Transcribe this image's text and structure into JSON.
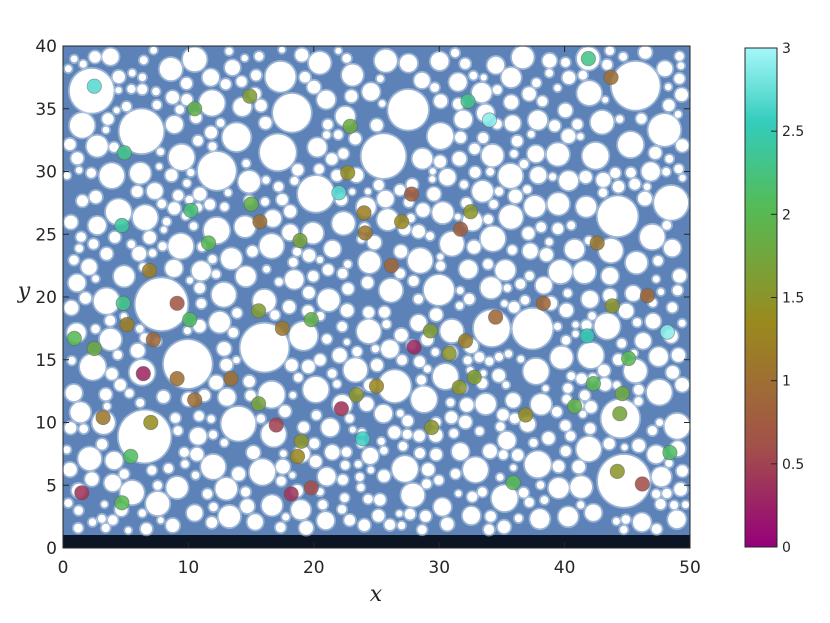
{
  "chart_data": {
    "type": "scatter",
    "title": "",
    "xlabel": "x",
    "ylabel": "y",
    "xlim": [
      0,
      50
    ],
    "ylim": [
      0,
      40
    ],
    "x_ticks": [
      0,
      10,
      20,
      30,
      40,
      50
    ],
    "y_ticks": [
      0,
      5,
      10,
      15,
      20,
      25,
      30,
      35,
      40
    ],
    "background": "packed white discs (grains) on a shaded blue field, dark band along y = 0 to 1",
    "colorbar": {
      "range": [
        0,
        3
      ],
      "ticks": [
        "0",
        "0.5",
        "1",
        "1.5",
        "2",
        "2.5",
        "3"
      ],
      "colors": [
        "#96007a",
        "#a3504a",
        "#9a8a1e",
        "#55bb55",
        "#33ccbb",
        "#a5f7fa"
      ]
    },
    "point_values": [
      {
        "x": 2.5,
        "y": 36.8,
        "c": 2.7
      },
      {
        "x": 10.5,
        "y": 35.0,
        "c": 1.9
      },
      {
        "x": 14.9,
        "y": 36.0,
        "c": 1.6
      },
      {
        "x": 32.3,
        "y": 35.6,
        "c": 2.3
      },
      {
        "x": 34.0,
        "y": 34.1,
        "c": 2.9
      },
      {
        "x": 41.9,
        "y": 39.0,
        "c": 2.3
      },
      {
        "x": 43.7,
        "y": 37.5,
        "c": 1.0
      },
      {
        "x": 4.9,
        "y": 31.5,
        "c": 2.3
      },
      {
        "x": 22.9,
        "y": 33.6,
        "c": 1.8
      },
      {
        "x": 22.0,
        "y": 28.3,
        "c": 2.7
      },
      {
        "x": 22.7,
        "y": 29.9,
        "c": 1.4
      },
      {
        "x": 27.8,
        "y": 28.2,
        "c": 0.8
      },
      {
        "x": 10.2,
        "y": 26.9,
        "c": 2.2
      },
      {
        "x": 15.0,
        "y": 27.4,
        "c": 1.9
      },
      {
        "x": 15.7,
        "y": 26.0,
        "c": 1.0
      },
      {
        "x": 4.7,
        "y": 25.7,
        "c": 2.4
      },
      {
        "x": 11.6,
        "y": 24.3,
        "c": 2.0
      },
      {
        "x": 18.9,
        "y": 24.5,
        "c": 1.7
      },
      {
        "x": 24.0,
        "y": 26.7,
        "c": 1.2
      },
      {
        "x": 24.1,
        "y": 25.1,
        "c": 1.1
      },
      {
        "x": 27.0,
        "y": 26.0,
        "c": 1.3
      },
      {
        "x": 32.5,
        "y": 26.8,
        "c": 1.5
      },
      {
        "x": 31.7,
        "y": 25.4,
        "c": 0.8
      },
      {
        "x": 42.6,
        "y": 24.3,
        "c": 1.1
      },
      {
        "x": 6.9,
        "y": 22.1,
        "c": 1.2
      },
      {
        "x": 26.2,
        "y": 22.5,
        "c": 0.9
      },
      {
        "x": 4.8,
        "y": 19.5,
        "c": 2.3
      },
      {
        "x": 9.1,
        "y": 19.5,
        "c": 0.7
      },
      {
        "x": 15.6,
        "y": 18.9,
        "c": 1.6
      },
      {
        "x": 10.1,
        "y": 18.2,
        "c": 2.1
      },
      {
        "x": 19.8,
        "y": 18.2,
        "c": 1.9
      },
      {
        "x": 5.1,
        "y": 17.8,
        "c": 1.2
      },
      {
        "x": 17.5,
        "y": 17.5,
        "c": 1.1
      },
      {
        "x": 34.5,
        "y": 18.4,
        "c": 0.9
      },
      {
        "x": 38.3,
        "y": 19.5,
        "c": 0.9
      },
      {
        "x": 43.8,
        "y": 19.3,
        "c": 1.5
      },
      {
        "x": 46.6,
        "y": 20.1,
        "c": 0.9
      },
      {
        "x": 48.2,
        "y": 17.2,
        "c": 2.9
      },
      {
        "x": 0.9,
        "y": 16.7,
        "c": 2.0
      },
      {
        "x": 2.5,
        "y": 15.9,
        "c": 1.8
      },
      {
        "x": 7.2,
        "y": 16.6,
        "c": 0.9
      },
      {
        "x": 29.3,
        "y": 17.3,
        "c": 1.6
      },
      {
        "x": 28.0,
        "y": 16.0,
        "c": 0.3
      },
      {
        "x": 32.1,
        "y": 16.5,
        "c": 1.2
      },
      {
        "x": 30.8,
        "y": 15.5,
        "c": 1.5
      },
      {
        "x": 41.8,
        "y": 16.9,
        "c": 2.5
      },
      {
        "x": 45.1,
        "y": 15.1,
        "c": 2.0
      },
      {
        "x": 6.4,
        "y": 13.9,
        "c": 0.3
      },
      {
        "x": 9.1,
        "y": 13.5,
        "c": 1.0
      },
      {
        "x": 13.4,
        "y": 13.5,
        "c": 1.0
      },
      {
        "x": 31.6,
        "y": 12.8,
        "c": 1.5
      },
      {
        "x": 32.8,
        "y": 13.6,
        "c": 1.6
      },
      {
        "x": 25.0,
        "y": 12.9,
        "c": 1.3
      },
      {
        "x": 23.4,
        "y": 12.2,
        "c": 1.5
      },
      {
        "x": 42.3,
        "y": 13.1,
        "c": 2.0
      },
      {
        "x": 44.6,
        "y": 12.3,
        "c": 1.8
      },
      {
        "x": 3.2,
        "y": 10.4,
        "c": 1.1
      },
      {
        "x": 10.5,
        "y": 11.8,
        "c": 1.0
      },
      {
        "x": 15.6,
        "y": 11.5,
        "c": 1.7
      },
      {
        "x": 22.2,
        "y": 11.1,
        "c": 0.4
      },
      {
        "x": 7.0,
        "y": 10.0,
        "c": 1.4
      },
      {
        "x": 17.0,
        "y": 9.8,
        "c": 0.5
      },
      {
        "x": 29.4,
        "y": 9.6,
        "c": 1.5
      },
      {
        "x": 36.9,
        "y": 10.6,
        "c": 1.4
      },
      {
        "x": 40.8,
        "y": 11.3,
        "c": 1.9
      },
      {
        "x": 44.4,
        "y": 10.7,
        "c": 1.7
      },
      {
        "x": 23.9,
        "y": 8.7,
        "c": 2.6
      },
      {
        "x": 19.0,
        "y": 8.5,
        "c": 1.5
      },
      {
        "x": 18.7,
        "y": 7.3,
        "c": 1.3
      },
      {
        "x": 5.4,
        "y": 7.3,
        "c": 2.1
      },
      {
        "x": 48.4,
        "y": 7.6,
        "c": 2.1
      },
      {
        "x": 44.2,
        "y": 6.1,
        "c": 1.5
      },
      {
        "x": 46.2,
        "y": 5.1,
        "c": 0.6
      },
      {
        "x": 35.9,
        "y": 5.2,
        "c": 2.0
      },
      {
        "x": 19.8,
        "y": 4.8,
        "c": 0.6
      },
      {
        "x": 18.2,
        "y": 4.3,
        "c": 0.4
      },
      {
        "x": 1.5,
        "y": 4.4,
        "c": 0.4
      },
      {
        "x": 4.7,
        "y": 3.6,
        "c": 2.0
      }
    ]
  }
}
